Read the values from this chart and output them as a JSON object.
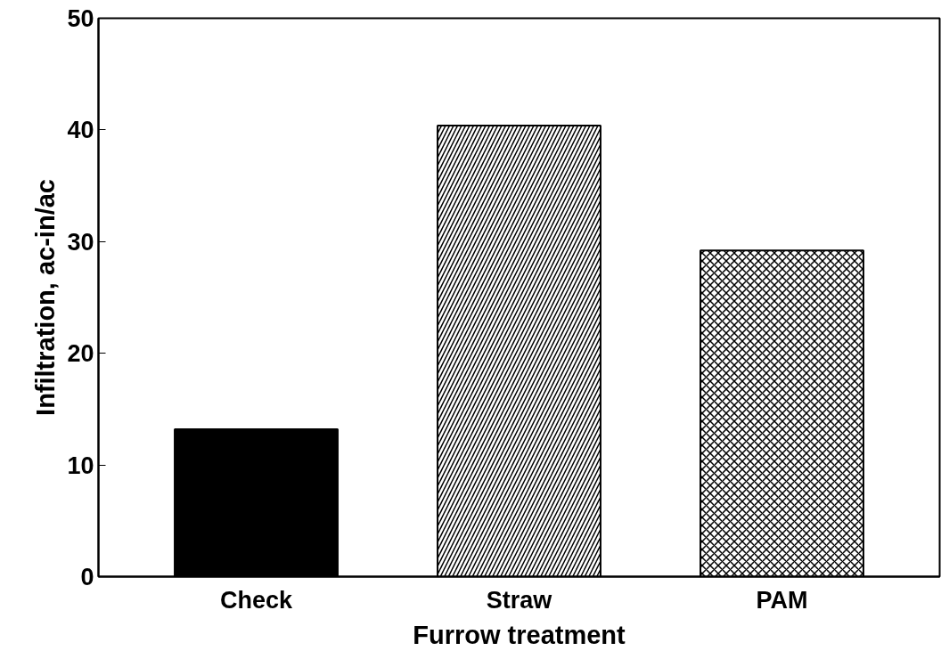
{
  "chart_data": {
    "type": "bar",
    "xlabel": "Furrow treatment",
    "ylabel": "Infiltration, ac-in/ac",
    "categories": [
      "Check",
      "Straw",
      "PAM"
    ],
    "values": [
      13.2,
      40.4,
      29.2
    ],
    "colors": [
      "#000000",
      "#ffffff",
      "#ffffff"
    ],
    "ylim": [
      0,
      50
    ],
    "yticks": [
      0,
      10,
      20,
      30,
      40,
      50
    ],
    "grid": false
  }
}
